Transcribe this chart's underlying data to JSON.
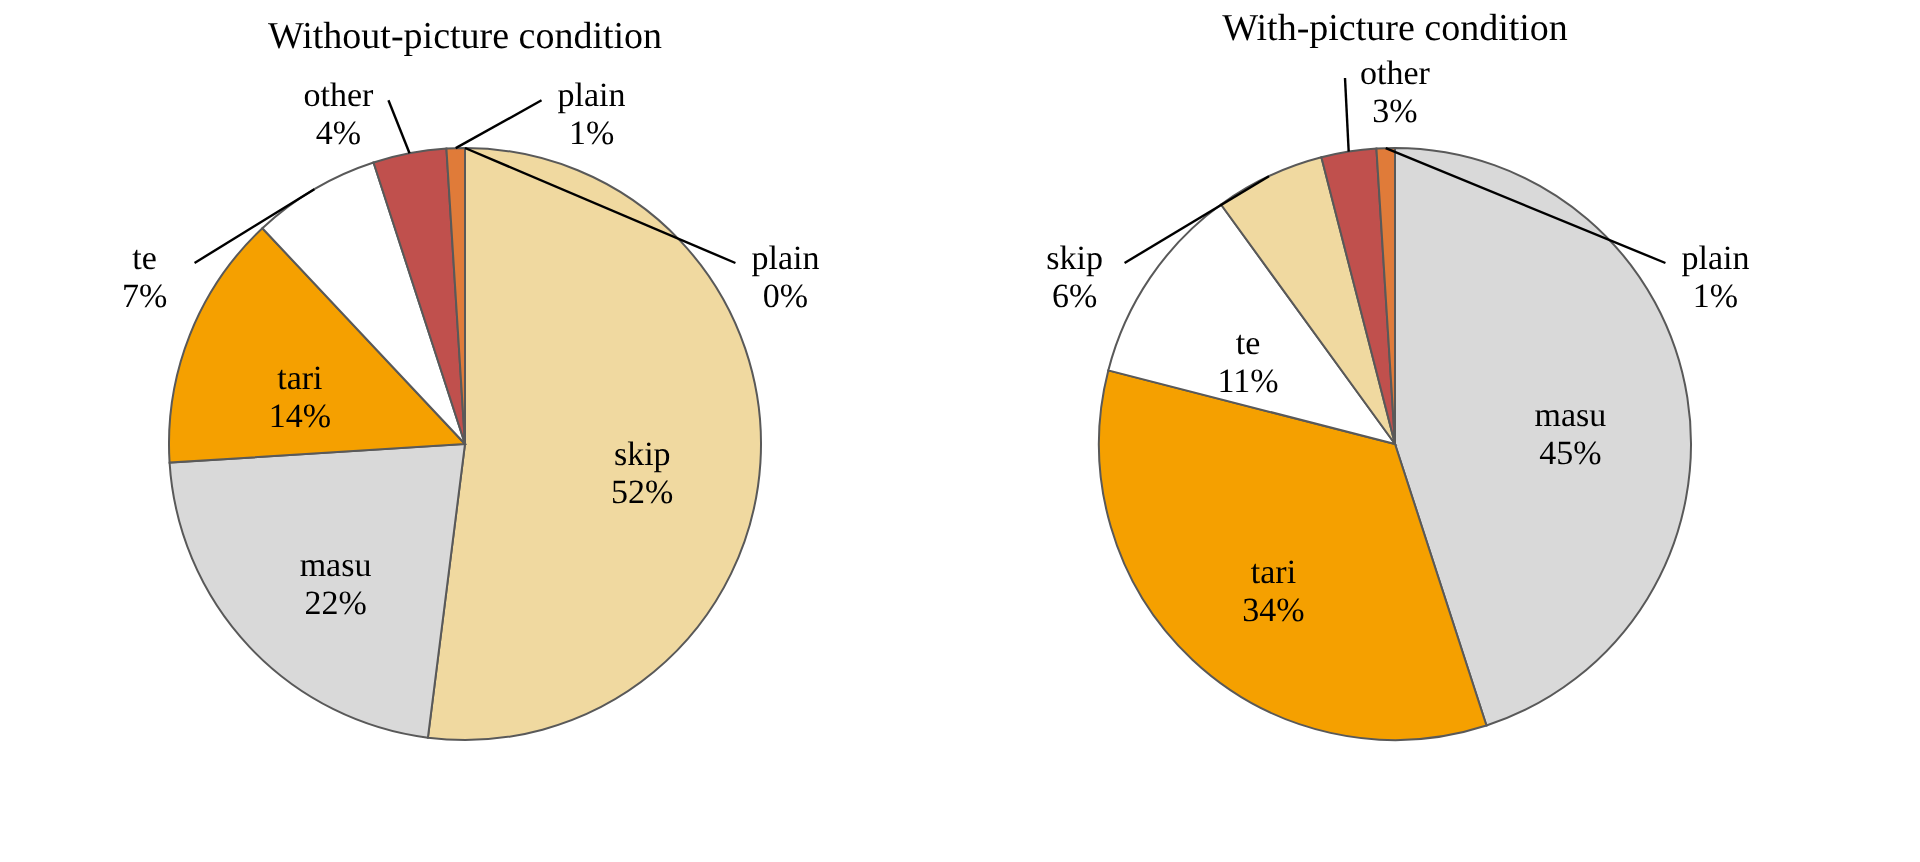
{
  "chart_data": [
    {
      "type": "pie",
      "title": "Without-picture condition",
      "categories": [
        "skip",
        "masu",
        "tari",
        "te",
        "other",
        "plain",
        "plain"
      ],
      "values": [
        52,
        22,
        14,
        7,
        4,
        1,
        0
      ],
      "colors": [
        "#f0d9a0",
        "#d9d9d9",
        "#f5a000",
        "#ffffff",
        "#c0504d",
        "#e07b39",
        "#4f81bd"
      ],
      "value_labels": [
        "52%",
        "22%",
        "14%",
        "7%",
        "4%",
        "1%",
        "0%"
      ]
    },
    {
      "type": "pie",
      "title": "With-picture condition",
      "categories": [
        "masu",
        "tari",
        "te",
        "skip",
        "other",
        "plain"
      ],
      "values": [
        45,
        34,
        11,
        6,
        3,
        1
      ],
      "colors": [
        "#d9d9d9",
        "#f5a000",
        "#ffffff",
        "#f0d9a0",
        "#c0504d",
        "#e07b39"
      ],
      "value_labels": [
        "45%",
        "34%",
        "11%",
        "6%",
        "3%",
        "1%"
      ]
    }
  ]
}
